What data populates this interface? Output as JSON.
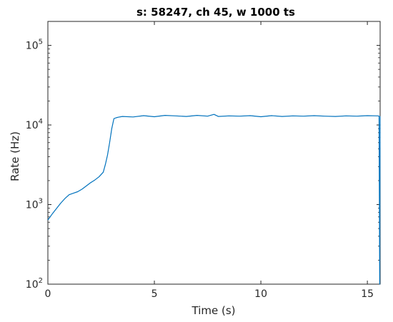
{
  "chart_data": {
    "type": "line",
    "title": "s: 58247, ch 45, w 1000 ts",
    "xlabel": "Time (s)",
    "ylabel": "Rate (Hz)",
    "xlim": [
      0,
      15.6
    ],
    "ylim": [
      100,
      200000
    ],
    "yscale": "log",
    "grid": false,
    "x_ticks": [
      0,
      5,
      10,
      15
    ],
    "x_tick_labels": [
      "0",
      "5",
      "10",
      "15"
    ],
    "y_ticks": [
      100,
      1000,
      10000,
      100000
    ],
    "y_tick_labels": [
      {
        "base": "10",
        "exp": "2"
      },
      {
        "base": "10",
        "exp": "3"
      },
      {
        "base": "10",
        "exp": "4"
      },
      {
        "base": "10",
        "exp": "5"
      }
    ],
    "series": [
      {
        "color": "#0072BD",
        "x": [
          0,
          0.2,
          0.4,
          0.6,
          0.8,
          1.0,
          1.2,
          1.4,
          1.6,
          1.8,
          2.0,
          2.2,
          2.4,
          2.6,
          2.7,
          2.8,
          2.9,
          3.0,
          3.1,
          3.2,
          3.3,
          3.5,
          4.0,
          4.5,
          5.0,
          5.5,
          6.0,
          6.5,
          7.0,
          7.5,
          7.8,
          8.0,
          8.5,
          9.0,
          9.5,
          10.0,
          10.5,
          11.0,
          11.5,
          12.0,
          12.5,
          13.0,
          13.5,
          14.0,
          14.5,
          15.0,
          15.5,
          15.55,
          15.58,
          15.6
        ],
        "values": [
          640,
          760,
          890,
          1040,
          1190,
          1330,
          1390,
          1450,
          1560,
          1710,
          1880,
          2030,
          2230,
          2550,
          3200,
          4200,
          6000,
          9000,
          12000,
          12300,
          12500,
          12800,
          12600,
          13100,
          12700,
          13200,
          13000,
          12800,
          13200,
          12900,
          13600,
          12800,
          13000,
          12900,
          13100,
          12700,
          13100,
          12800,
          13000,
          12900,
          13100,
          12900,
          12800,
          13000,
          12900,
          13100,
          13000,
          12900,
          100,
          12900
        ]
      }
    ]
  }
}
